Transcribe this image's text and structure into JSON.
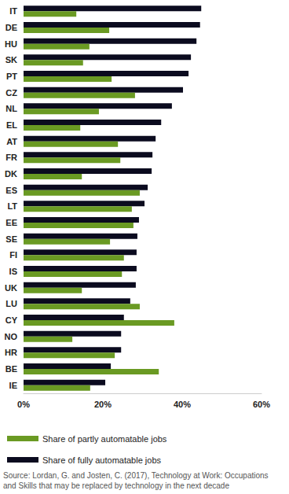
{
  "chart_data": {
    "type": "bar",
    "orientation": "horizontal",
    "categories": [
      "IT",
      "DE",
      "HU",
      "SK",
      "PT",
      "CZ",
      "NL",
      "EL",
      "AT",
      "FR",
      "DK",
      "ES",
      "LT",
      "EE",
      "SE",
      "FI",
      "IS",
      "UK",
      "LU",
      "CY",
      "NO",
      "HR",
      "BE",
      "IE"
    ],
    "series": [
      {
        "name": "Share of partly automatable jobs",
        "color": "#6a9a23",
        "values": [
          13.3,
          21.6,
          16.6,
          15.0,
          22.2,
          28.1,
          19.0,
          14.3,
          23.8,
          24.4,
          14.7,
          29.3,
          27.3,
          27.7,
          21.8,
          25.3,
          24.8,
          14.7,
          29.3,
          38.0,
          12.3,
          23.0,
          34.1,
          16.8
        ]
      },
      {
        "name": "Share of fully automatable jobs",
        "color": "#0b0b1f",
        "values": [
          44.8,
          44.5,
          43.6,
          42.2,
          41.6,
          40.2,
          37.4,
          34.7,
          33.3,
          32.5,
          32.3,
          31.3,
          30.5,
          29.1,
          28.7,
          28.5,
          28.5,
          28.3,
          26.9,
          25.3,
          24.6,
          24.6,
          22.0,
          20.6
        ]
      }
    ],
    "xlim": [
      0,
      60
    ],
    "xticks": [
      {
        "value": 0,
        "label": "0%"
      },
      {
        "value": 20,
        "label": "20%"
      },
      {
        "value": 40,
        "label": "40%"
      },
      {
        "value": 60,
        "label": "60%"
      }
    ],
    "grid": false,
    "legend": "bottom-left",
    "annotations": [
      "Source: Lordan, G. and Josten, C. (2017), Technology at Work: Occupations and Skills that may be replaced by technology in the next decade"
    ]
  }
}
